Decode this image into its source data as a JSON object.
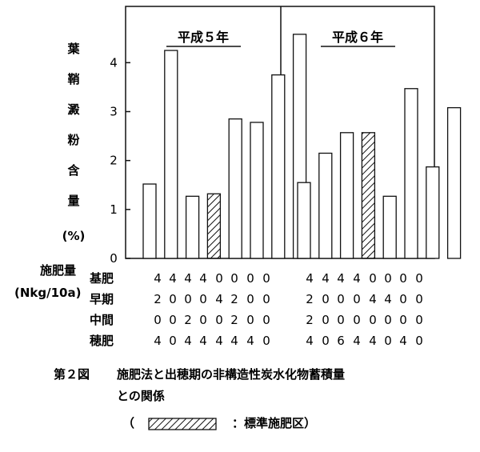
{
  "chart_data": {
    "type": "bar",
    "ylabel": "葉鞘澱粉含量",
    "yunit": "(%)",
    "ylim": [
      0,
      5.15
    ],
    "yticks": [
      "0",
      "1",
      "2",
      "3",
      "4"
    ],
    "panels": [
      {
        "title": "平成５年",
        "values": [
          1.52,
          4.25,
          1.27,
          1.32,
          2.85,
          2.78,
          3.75,
          4.58
        ],
        "standard_index": 3
      },
      {
        "title": "平成６年",
        "values": [
          1.55,
          2.15,
          2.57,
          2.57,
          1.27,
          3.47,
          1.87,
          3.08
        ],
        "standard_index": 3
      }
    ],
    "table": {
      "header_line1": "施肥量",
      "header_line2": "(Nkg/10a)",
      "rows": [
        {
          "label": "基肥",
          "panel1": [
            "4",
            "4",
            "4",
            "4",
            "0",
            "0",
            "0",
            "0"
          ],
          "panel2": [
            "4",
            "4",
            "4",
            "4",
            "0",
            "0",
            "0",
            "0"
          ]
        },
        {
          "label": "早期",
          "panel1": [
            "2",
            "0",
            "0",
            "0",
            "4",
            "2",
            "0",
            "0"
          ],
          "panel2": [
            "2",
            "0",
            "0",
            "0",
            "4",
            "4",
            "0",
            "0"
          ]
        },
        {
          "label": "中間",
          "panel1": [
            "0",
            "0",
            "2",
            "0",
            "0",
            "2",
            "0",
            "0"
          ],
          "panel2": [
            "2",
            "0",
            "0",
            "0",
            "0",
            "0",
            "0",
            "0"
          ]
        },
        {
          "label": "穂肥",
          "panel1": [
            "4",
            "0",
            "4",
            "4",
            "4",
            "4",
            "4",
            "0"
          ],
          "panel2": [
            "4",
            "0",
            "6",
            "4",
            "4",
            "0",
            "4",
            "0"
          ]
        }
      ]
    }
  },
  "caption": {
    "figure_no": "第２図",
    "line1": "施肥法と出穂期の非構造性炭水化物蓄積量",
    "line2": "との関係",
    "legend_open": "（",
    "legend_text": "：標準施肥区）"
  }
}
